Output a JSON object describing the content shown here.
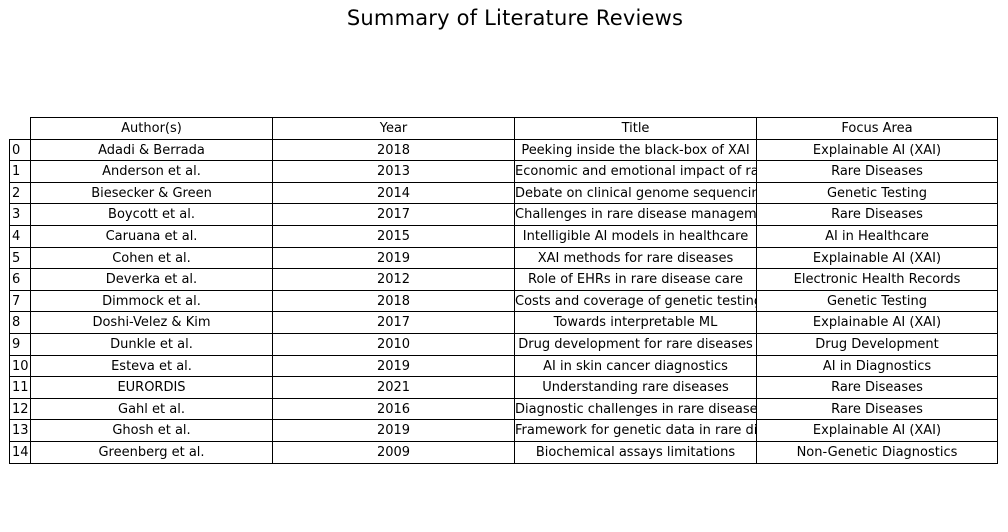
{
  "chart_data": {
    "type": "table",
    "title": "Summary of Literature Reviews",
    "columns": [
      "Author(s)",
      "Year",
      "Title",
      "Focus Area"
    ],
    "row_labels": [
      "0",
      "1",
      "2",
      "3",
      "4",
      "5",
      "6",
      "7",
      "8",
      "9",
      "10",
      "11",
      "12",
      "13",
      "14"
    ],
    "rows": [
      [
        "Adadi & Berrada",
        "2018",
        "Peeking inside the black-box of XAI",
        "Explainable AI (XAI)"
      ],
      [
        "Anderson et al.",
        "2013",
        "Economic and emotional impact of rare diseases",
        "Rare Diseases"
      ],
      [
        "Biesecker & Green",
        "2014",
        "Debate on clinical genome sequencing",
        "Genetic Testing"
      ],
      [
        "Boycott et al.",
        "2017",
        "Challenges in rare disease management",
        "Rare Diseases"
      ],
      [
        "Caruana et al.",
        "2015",
        "Intelligible AI models in healthcare",
        "AI in Healthcare"
      ],
      [
        "Cohen et al.",
        "2019",
        "XAI methods for rare diseases",
        "Explainable AI (XAI)"
      ],
      [
        "Deverka et al.",
        "2012",
        "Role of EHRs in rare disease care",
        "Electronic Health Records"
      ],
      [
        "Dimmock et al.",
        "2018",
        "Costs and coverage of genetic testing",
        "Genetic Testing"
      ],
      [
        "Doshi-Velez & Kim",
        "2017",
        "Towards interpretable ML",
        "Explainable AI (XAI)"
      ],
      [
        "Dunkle et al.",
        "2010",
        "Drug development for rare diseases",
        "Drug Development"
      ],
      [
        "Esteva et al.",
        "2019",
        "AI in skin cancer diagnostics",
        "AI in Diagnostics"
      ],
      [
        "EURORDIS",
        "2021",
        "Understanding rare diseases",
        "Rare Diseases"
      ],
      [
        "Gahl et al.",
        "2016",
        "Diagnostic challenges in rare diseases",
        "Rare Diseases"
      ],
      [
        "Ghosh et al.",
        "2019",
        "Framework for genetic data in rare diseases",
        "Explainable AI (XAI)"
      ],
      [
        "Greenberg et al.",
        "2009",
        "Biochemical assays limitations",
        "Non-Genetic Diagnostics"
      ]
    ]
  }
}
